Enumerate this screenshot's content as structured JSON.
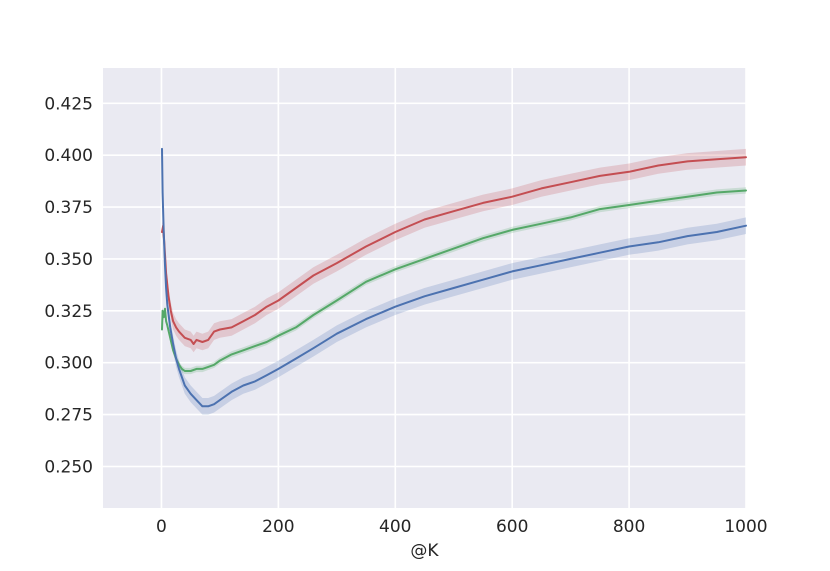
{
  "chart_data": {
    "type": "line",
    "xlabel": "@K",
    "ylabel": "",
    "xlim": [
      -100,
      1000
    ],
    "ylim": [
      0.23,
      0.442
    ],
    "xticks": [
      0,
      200,
      400,
      600,
      800,
      1000
    ],
    "yticks": [
      0.25,
      0.275,
      0.3,
      0.325,
      0.35,
      0.375,
      0.4,
      0.425
    ],
    "xtick_labels": [
      "0",
      "200",
      "400",
      "600",
      "800",
      "1000"
    ],
    "ytick_labels": [
      "0.250",
      "0.275",
      "0.300",
      "0.325",
      "0.350",
      "0.375",
      "0.400",
      "0.425"
    ],
    "grid": true,
    "background": "#EAEAF2",
    "series": [
      {
        "color": "#C44E52",
        "band": 0.004,
        "x": [
          1,
          3,
          5,
          8,
          12,
          16,
          20,
          25,
          30,
          40,
          50,
          55,
          60,
          70,
          80,
          90,
          100,
          120,
          140,
          160,
          180,
          200,
          230,
          260,
          300,
          350,
          400,
          450,
          500,
          550,
          600,
          650,
          700,
          750,
          800,
          850,
          900,
          950,
          1000
        ],
        "y": [
          0.363,
          0.366,
          0.357,
          0.343,
          0.332,
          0.325,
          0.32,
          0.317,
          0.315,
          0.312,
          0.311,
          0.309,
          0.311,
          0.31,
          0.311,
          0.315,
          0.316,
          0.317,
          0.32,
          0.323,
          0.327,
          0.33,
          0.336,
          0.342,
          0.348,
          0.356,
          0.363,
          0.369,
          0.373,
          0.377,
          0.38,
          0.384,
          0.387,
          0.39,
          0.392,
          0.395,
          0.397,
          0.398,
          0.399
        ]
      },
      {
        "color": "#55A868",
        "band": 0.0015,
        "x": [
          1,
          2,
          4,
          6,
          8,
          10,
          15,
          20,
          25,
          30,
          35,
          40,
          45,
          50,
          60,
          70,
          80,
          90,
          100,
          120,
          140,
          160,
          180,
          200,
          230,
          260,
          300,
          350,
          400,
          450,
          500,
          550,
          600,
          650,
          700,
          750,
          800,
          850,
          900,
          950,
          1000
        ],
        "y": [
          0.316,
          0.325,
          0.322,
          0.326,
          0.32,
          0.318,
          0.312,
          0.306,
          0.302,
          0.299,
          0.297,
          0.296,
          0.296,
          0.296,
          0.297,
          0.297,
          0.298,
          0.299,
          0.301,
          0.304,
          0.306,
          0.308,
          0.31,
          0.313,
          0.317,
          0.323,
          0.33,
          0.339,
          0.345,
          0.35,
          0.355,
          0.36,
          0.364,
          0.367,
          0.37,
          0.374,
          0.376,
          0.378,
          0.38,
          0.382,
          0.383
        ]
      },
      {
        "color": "#4C72B0",
        "band": 0.004,
        "x": [
          1,
          2,
          4,
          6,
          8,
          10,
          15,
          20,
          25,
          30,
          40,
          50,
          60,
          70,
          80,
          90,
          100,
          120,
          140,
          160,
          180,
          200,
          230,
          260,
          300,
          350,
          400,
          450,
          500,
          550,
          600,
          650,
          700,
          750,
          800,
          850,
          900,
          950,
          1000
        ],
        "y": [
          0.403,
          0.382,
          0.362,
          0.347,
          0.336,
          0.328,
          0.317,
          0.309,
          0.302,
          0.297,
          0.289,
          0.285,
          0.282,
          0.279,
          0.279,
          0.28,
          0.282,
          0.286,
          0.289,
          0.291,
          0.294,
          0.297,
          0.302,
          0.307,
          0.314,
          0.321,
          0.327,
          0.332,
          0.336,
          0.34,
          0.344,
          0.347,
          0.35,
          0.353,
          0.356,
          0.358,
          0.361,
          0.363,
          0.366
        ]
      }
    ]
  }
}
